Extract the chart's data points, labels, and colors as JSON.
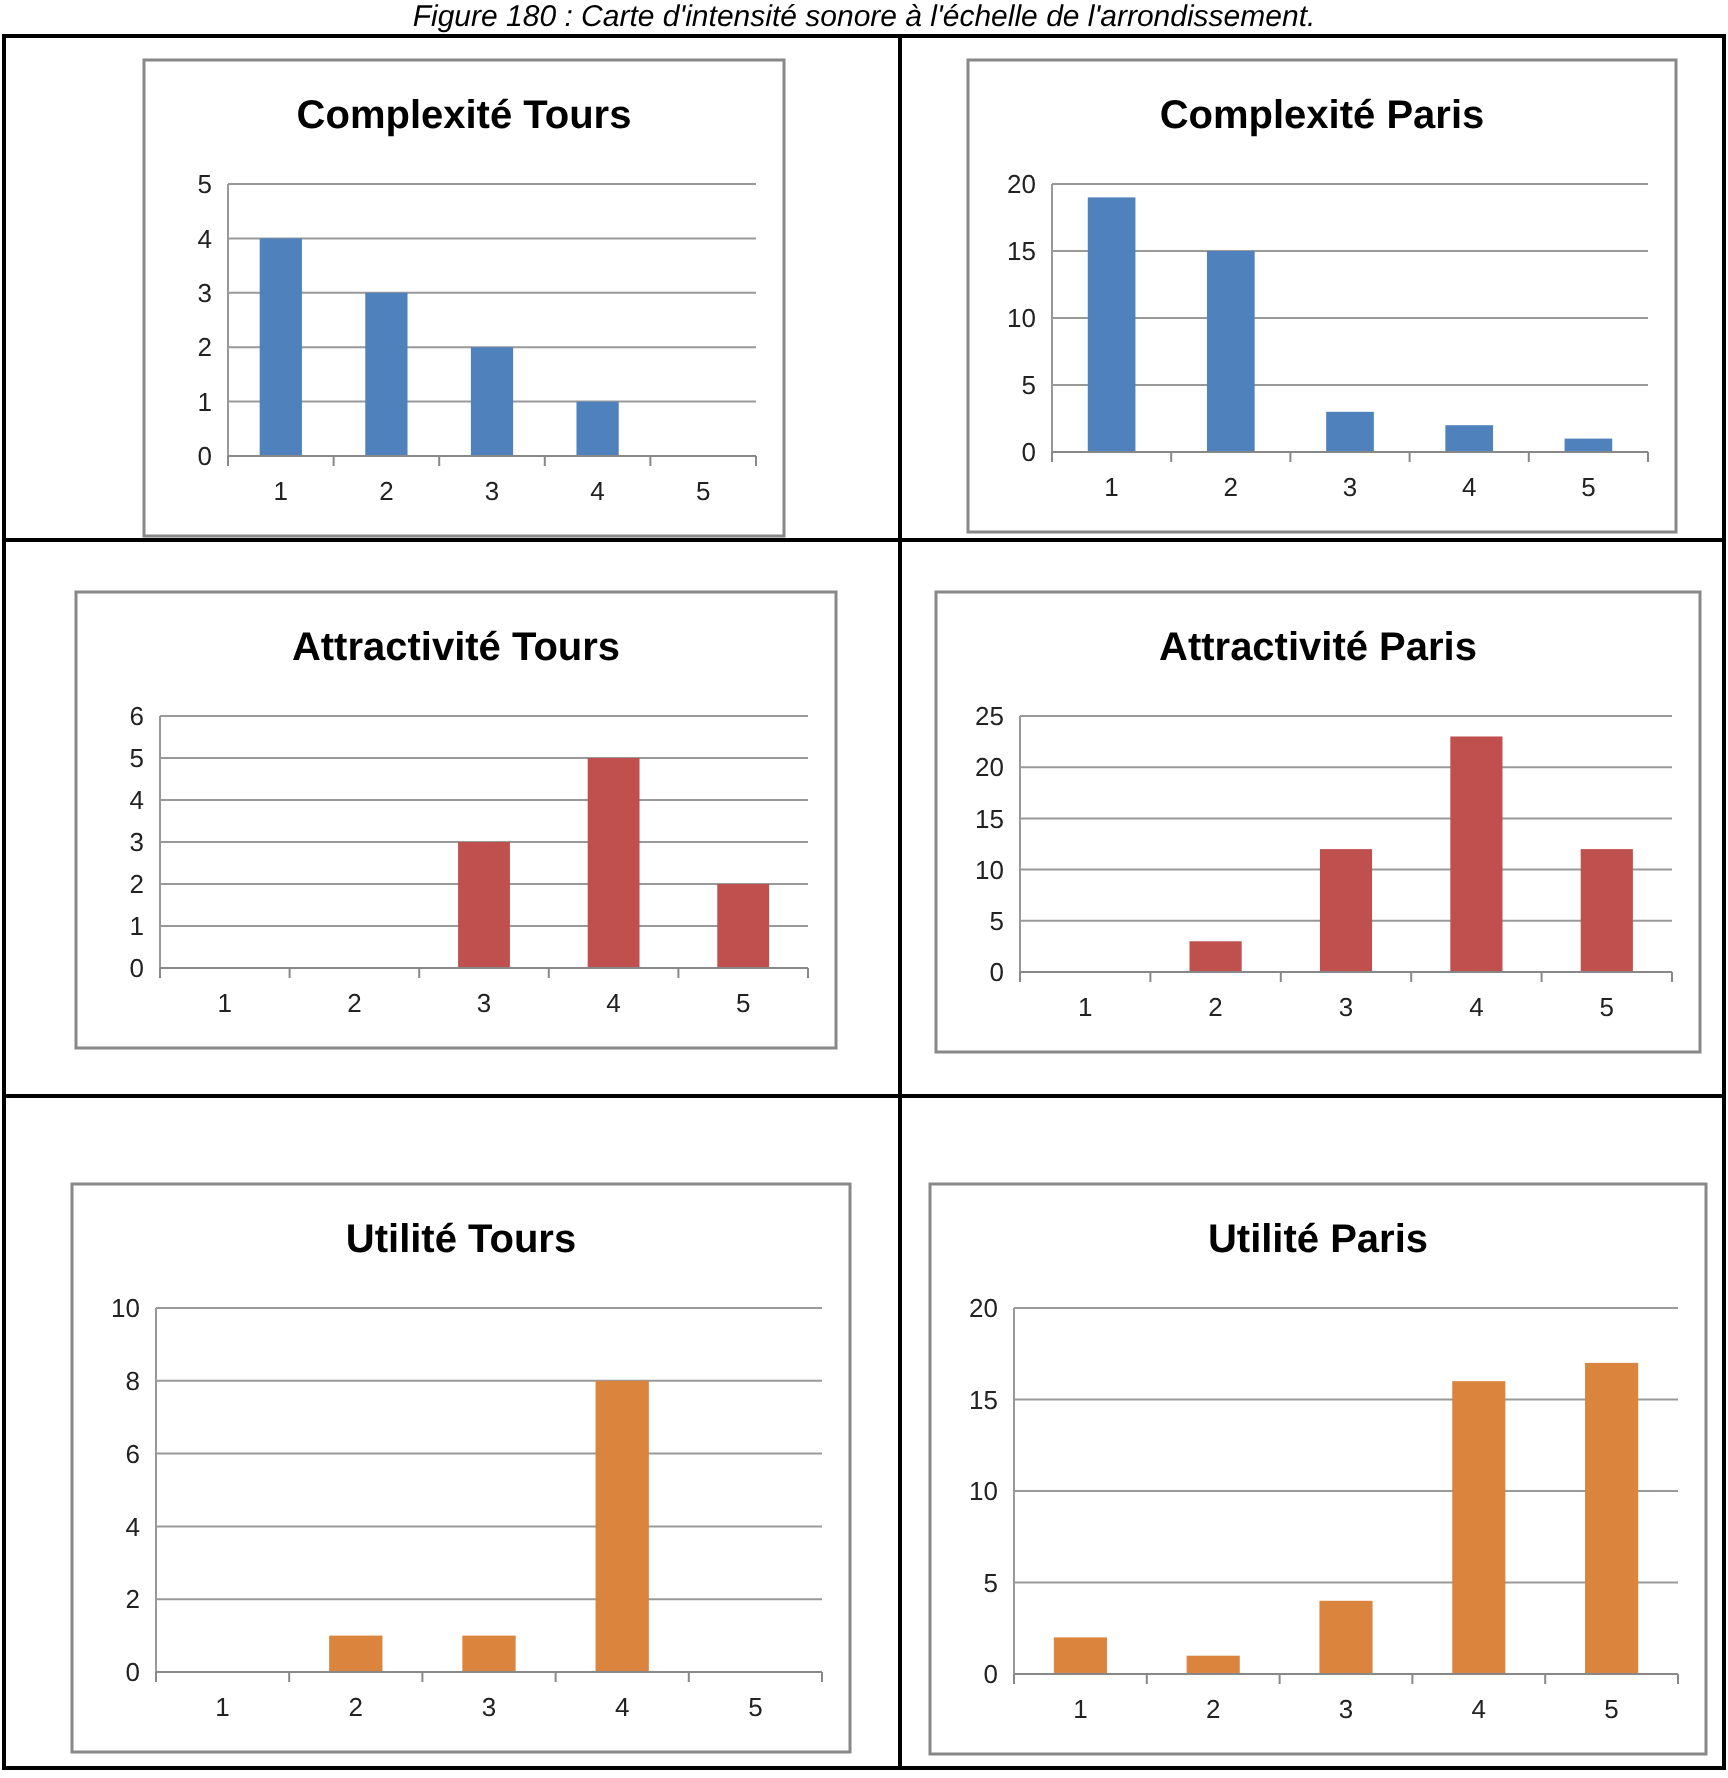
{
  "chart_data": [
    {
      "type": "bar",
      "title": "Complexité Tours",
      "categories": [
        "1",
        "2",
        "3",
        "4",
        "5"
      ],
      "values": [
        4,
        3,
        2,
        1,
        0
      ],
      "color": "#4f81bd",
      "ylim": [
        0,
        5
      ],
      "yticks": [
        0,
        1,
        2,
        3,
        4,
        5
      ],
      "grid": "y",
      "annotations": [
        "Figure 180 : Carte d'intensité sonore à l'échelle de l'arrondissement."
      ]
    },
    {
      "type": "bar",
      "title": "Complexité Paris",
      "categories": [
        "1",
        "2",
        "3",
        "4",
        "5"
      ],
      "values": [
        19,
        15,
        3,
        2,
        1
      ],
      "color": "#4f81bd",
      "ylim": [
        0,
        20
      ],
      "yticks": [
        0,
        5,
        10,
        15,
        20
      ],
      "grid": "y"
    },
    {
      "type": "bar",
      "title": "Attractivité Tours",
      "categories": [
        "1",
        "2",
        "3",
        "4",
        "5"
      ],
      "values": [
        0,
        0,
        3,
        5,
        2
      ],
      "color": "#c0504d",
      "ylim": [
        0,
        6
      ],
      "yticks": [
        0,
        1,
        2,
        3,
        4,
        5,
        6
      ],
      "grid": "y"
    },
    {
      "type": "bar",
      "title": "Attractivité Paris",
      "categories": [
        "1",
        "2",
        "3",
        "4",
        "5"
      ],
      "values": [
        0,
        3,
        12,
        23,
        12
      ],
      "color": "#c0504d",
      "ylim": [
        0,
        25
      ],
      "yticks": [
        0,
        5,
        10,
        15,
        20,
        25
      ],
      "grid": "y"
    },
    {
      "type": "bar",
      "title": "Utilité Tours",
      "categories": [
        "1",
        "2",
        "3",
        "4",
        "5"
      ],
      "values": [
        0,
        1,
        1,
        8,
        0
      ],
      "color": "#db843d",
      "ylim": [
        0,
        10
      ],
      "yticks": [
        0,
        2,
        4,
        6,
        8,
        10
      ],
      "grid": "y"
    },
    {
      "type": "bar",
      "title": "Utilité Paris",
      "categories": [
        "1",
        "2",
        "3",
        "4",
        "5"
      ],
      "values": [
        2,
        1,
        4,
        16,
        17
      ],
      "color": "#db843d",
      "ylim": [
        0,
        20
      ],
      "yticks": [
        0,
        5,
        10,
        15,
        20
      ],
      "grid": "y"
    }
  ]
}
